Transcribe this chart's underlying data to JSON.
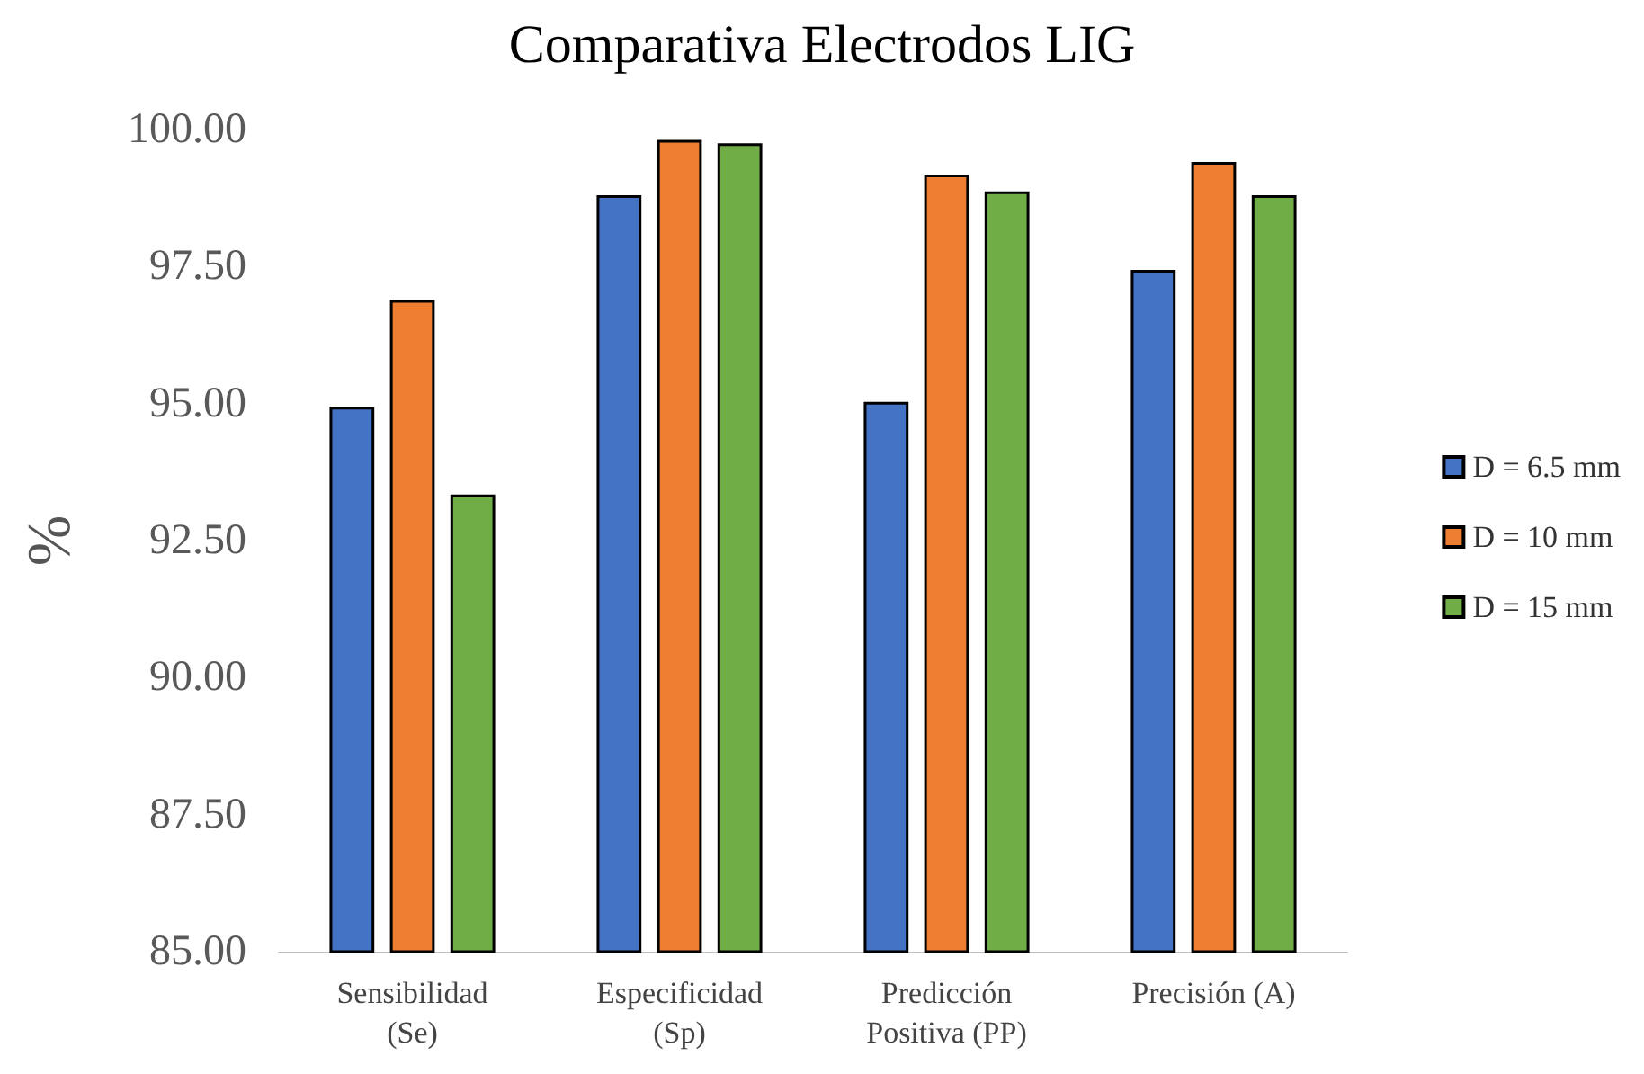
{
  "chart_data": {
    "type": "bar",
    "title": "Comparativa Electrodos LIG",
    "ylabel": "%",
    "categories": [
      "Sensibilidad\n(Se)",
      "Especificidad\n(Sp)",
      "Predicción\nPositiva (PP)",
      "Precisión (A)"
    ],
    "series": [
      {
        "name": "D = 6.5 mm",
        "color": "#4472c4",
        "values": [
          94.94,
          98.8,
          95.03,
          97.44
        ]
      },
      {
        "name": "D = 10 mm",
        "color": "#ed7d31",
        "values": [
          96.89,
          99.81,
          99.18,
          99.41
        ]
      },
      {
        "name": "D = 15 mm",
        "color": "#70ad47",
        "values": [
          93.34,
          99.75,
          98.87,
          98.8
        ]
      }
    ],
    "ylim": [
      85,
      100
    ],
    "yticks": [
      {
        "value": 85,
        "label": "85.00"
      },
      {
        "value": 87.5,
        "label": "87.50"
      },
      {
        "value": 90,
        "label": "90.00"
      },
      {
        "value": 92.5,
        "label": "92.50"
      },
      {
        "value": 95,
        "label": "95.00"
      },
      {
        "value": 97.5,
        "label": "97.50"
      },
      {
        "value": 100,
        "label": "100.00"
      }
    ],
    "grid": false,
    "legend": "right"
  }
}
